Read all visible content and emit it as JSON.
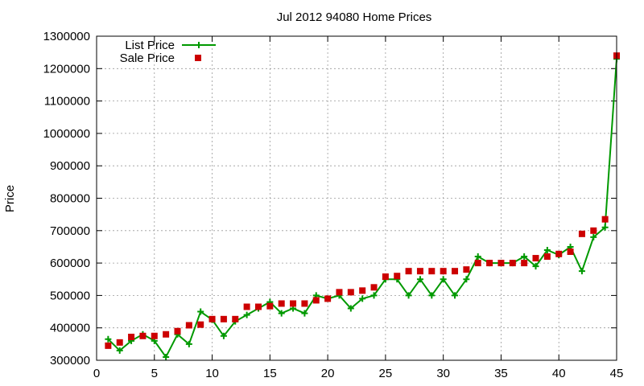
{
  "chart_data": {
    "type": "line",
    "title": "Jul 2012 94080 Home Prices",
    "xlabel": "",
    "ylabel": "Price",
    "xlim": [
      0,
      45
    ],
    "ylim": [
      300000,
      1300000
    ],
    "xticks": [
      0,
      5,
      10,
      15,
      20,
      25,
      30,
      35,
      40,
      45
    ],
    "yticks": [
      300000,
      400000,
      500000,
      600000,
      700000,
      800000,
      900000,
      1000000,
      1100000,
      1200000,
      1300000
    ],
    "grid": true,
    "legend_position": "top-left",
    "x": [
      1,
      2,
      3,
      4,
      5,
      6,
      7,
      8,
      9,
      10,
      11,
      12,
      13,
      14,
      15,
      16,
      17,
      18,
      19,
      20,
      21,
      22,
      23,
      24,
      25,
      26,
      27,
      28,
      29,
      30,
      31,
      32,
      33,
      34,
      35,
      36,
      37,
      38,
      39,
      40,
      41,
      42,
      43,
      44,
      45
    ],
    "series": [
      {
        "name": "List Price",
        "style": "line-plus",
        "color": "#009900",
        "values": [
          365000,
          330000,
          360000,
          380000,
          360000,
          310000,
          380000,
          350000,
          450000,
          425000,
          375000,
          420000,
          440000,
          460000,
          480000,
          445000,
          460000,
          445000,
          500000,
          490000,
          500000,
          460000,
          490000,
          500000,
          550000,
          550000,
          500000,
          550000,
          500000,
          550000,
          500000,
          550000,
          620000,
          600000,
          600000,
          600000,
          620000,
          590000,
          640000,
          625000,
          650000,
          575000,
          680000,
          710000,
          1230000
        ]
      },
      {
        "name": "Sale Price",
        "style": "square-points",
        "color": "#cc0000",
        "values": [
          345000,
          355000,
          372000,
          375000,
          375000,
          380000,
          390000,
          408000,
          410000,
          427000,
          427000,
          427000,
          465000,
          465000,
          467000,
          475000,
          475000,
          475000,
          485000,
          490000,
          510000,
          510000,
          515000,
          525000,
          558000,
          560000,
          575000,
          575000,
          575000,
          575000,
          575000,
          580000,
          600000,
          600000,
          600000,
          600000,
          600000,
          615000,
          620000,
          628000,
          635000,
          690000,
          700000,
          735000,
          1240000
        ]
      }
    ]
  }
}
